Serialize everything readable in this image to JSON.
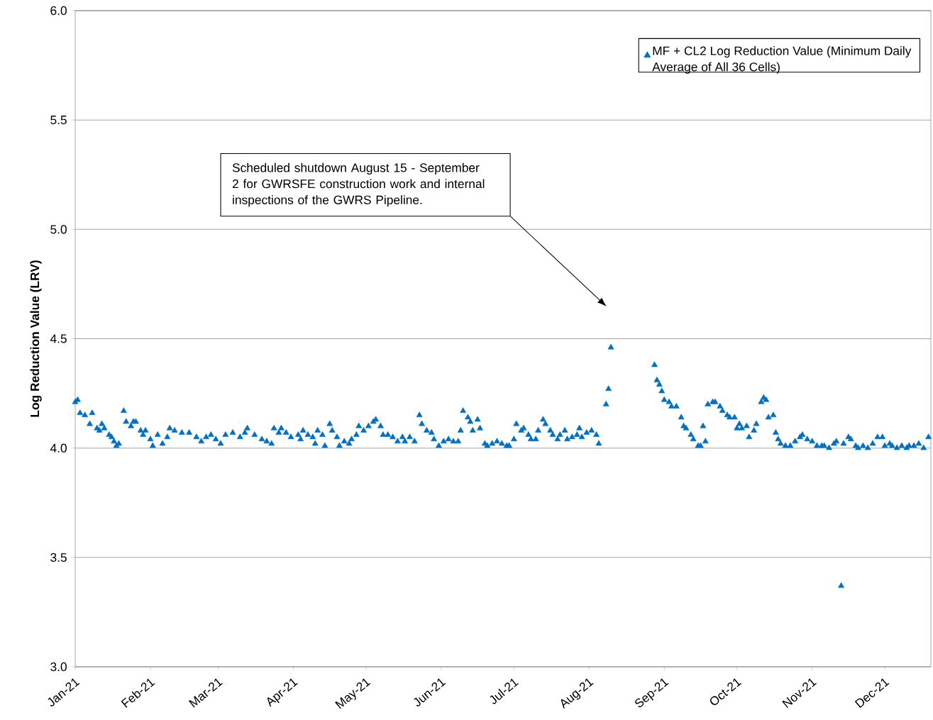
{
  "chart_data": {
    "type": "scatter",
    "ylabel": "Log Reduction Value (LRV)",
    "xlim": [
      "2021-01-01",
      "2021-12-20"
    ],
    "ylim": [
      3.0,
      6.0
    ],
    "yticks": [
      {
        "value": 3.0,
        "label": "3.0"
      },
      {
        "value": 3.5,
        "label": "3.5"
      },
      {
        "value": 4.0,
        "label": "4.0"
      },
      {
        "value": 4.5,
        "label": "4.5"
      },
      {
        "value": 5.0,
        "label": "5.0"
      },
      {
        "value": 5.5,
        "label": "5.5"
      },
      {
        "value": 6.0,
        "label": "6.0"
      }
    ],
    "xticks": [
      {
        "value": "2021-01-01",
        "label": "Jan-21"
      },
      {
        "value": "2021-02-01",
        "label": "Feb-21"
      },
      {
        "value": "2021-03-01",
        "label": "Mar-21"
      },
      {
        "value": "2021-04-01",
        "label": "Apr-21"
      },
      {
        "value": "2021-05-01",
        "label": "May-21"
      },
      {
        "value": "2021-06-01",
        "label": "Jun-21"
      },
      {
        "value": "2021-07-01",
        "label": "Jul-21"
      },
      {
        "value": "2021-08-01",
        "label": "Aug-21"
      },
      {
        "value": "2021-09-01",
        "label": "Sep-21"
      },
      {
        "value": "2021-10-01",
        "label": "Oct-21"
      },
      {
        "value": "2021-11-01",
        "label": "Nov-21"
      },
      {
        "value": "2021-12-01",
        "label": "Dec-21"
      }
    ],
    "grid": "y",
    "legend": "top right",
    "marker": "triangle",
    "annotations": [
      "Scheduled shutdown August 15 - September 2 for GWRSFE construction work and internal inspections of the GWRS Pipeline."
    ],
    "series": [
      {
        "name": "MF + CL2 Log Reduction Value (Minimum Daily Average of All 36 Cells)",
        "color": "#0070c0",
        "x": [
          "2021-01-01",
          "2021-01-02",
          "2021-01-03",
          "2021-01-05",
          "2021-01-07",
          "2021-01-08",
          "2021-01-10",
          "2021-01-11",
          "2021-01-12",
          "2021-01-13",
          "2021-01-15",
          "2021-01-16",
          "2021-01-17",
          "2021-01-18",
          "2021-01-19",
          "2021-01-21",
          "2021-01-22",
          "2021-01-24",
          "2021-01-25",
          "2021-01-26",
          "2021-01-28",
          "2021-01-29",
          "2021-01-30",
          "2021-02-01",
          "2021-02-02",
          "2021-02-04",
          "2021-02-06",
          "2021-02-08",
          "2021-02-09",
          "2021-02-11",
          "2021-02-14",
          "2021-02-17",
          "2021-02-20",
          "2021-02-22",
          "2021-02-24",
          "2021-02-26",
          "2021-02-28",
          "2021-03-02",
          "2021-03-04",
          "2021-03-07",
          "2021-03-10",
          "2021-03-12",
          "2021-03-13",
          "2021-03-16",
          "2021-03-19",
          "2021-03-21",
          "2021-03-23",
          "2021-03-24",
          "2021-03-26",
          "2021-03-27",
          "2021-03-29",
          "2021-03-31",
          "2021-04-03",
          "2021-04-04",
          "2021-04-05",
          "2021-04-07",
          "2021-04-09",
          "2021-04-10",
          "2021-04-11",
          "2021-04-13",
          "2021-04-14",
          "2021-04-16",
          "2021-04-17",
          "2021-04-19",
          "2021-04-20",
          "2021-04-22",
          "2021-04-24",
          "2021-04-25",
          "2021-04-27",
          "2021-04-28",
          "2021-04-30",
          "2021-05-02",
          "2021-05-04",
          "2021-05-05",
          "2021-05-07",
          "2021-05-08",
          "2021-05-10",
          "2021-05-12",
          "2021-05-14",
          "2021-05-16",
          "2021-05-17",
          "2021-05-19",
          "2021-05-21",
          "2021-05-23",
          "2021-05-24",
          "2021-05-26",
          "2021-05-28",
          "2021-05-29",
          "2021-05-31",
          "2021-06-02",
          "2021-06-04",
          "2021-06-06",
          "2021-06-08",
          "2021-06-09",
          "2021-06-10",
          "2021-06-12",
          "2021-06-13",
          "2021-06-14",
          "2021-06-16",
          "2021-06-17",
          "2021-06-19",
          "2021-06-20",
          "2021-06-22",
          "2021-06-24",
          "2021-06-26",
          "2021-06-28",
          "2021-06-29",
          "2021-07-01",
          "2021-07-02",
          "2021-07-04",
          "2021-07-05",
          "2021-07-07",
          "2021-07-08",
          "2021-07-10",
          "2021-07-11",
          "2021-07-13",
          "2021-07-14",
          "2021-07-16",
          "2021-07-17",
          "2021-07-19",
          "2021-07-20",
          "2021-07-22",
          "2021-07-23",
          "2021-07-25",
          "2021-07-27",
          "2021-07-28",
          "2021-07-29",
          "2021-07-31",
          "2021-08-02",
          "2021-08-04",
          "2021-08-05",
          "2021-08-08",
          "2021-08-09",
          "2021-08-10",
          "2021-08-28",
          "2021-08-29",
          "2021-08-30",
          "2021-08-31",
          "2021-09-01",
          "2021-09-03",
          "2021-09-04",
          "2021-09-06",
          "2021-09-08",
          "2021-09-09",
          "2021-09-10",
          "2021-09-12",
          "2021-09-13",
          "2021-09-15",
          "2021-09-16",
          "2021-09-17",
          "2021-09-18",
          "2021-09-19",
          "2021-09-21",
          "2021-09-22",
          "2021-09-24",
          "2021-09-25",
          "2021-09-27",
          "2021-09-28",
          "2021-09-30",
          "2021-10-01",
          "2021-10-02",
          "2021-10-03",
          "2021-10-05",
          "2021-10-06",
          "2021-10-08",
          "2021-10-09",
          "2021-10-11",
          "2021-10-12",
          "2021-10-13",
          "2021-10-14",
          "2021-10-16",
          "2021-10-17",
          "2021-10-18",
          "2021-10-19",
          "2021-10-21",
          "2021-10-23",
          "2021-10-25",
          "2021-10-27",
          "2021-10-28",
          "2021-10-30",
          "2021-11-01",
          "2021-11-03",
          "2021-11-05",
          "2021-11-06",
          "2021-11-08",
          "2021-11-10",
          "2021-11-11",
          "2021-11-13",
          "2021-11-14",
          "2021-11-16",
          "2021-11-17",
          "2021-11-19",
          "2021-11-20",
          "2021-11-22",
          "2021-11-24",
          "2021-11-26",
          "2021-11-28",
          "2021-11-30",
          "2021-12-01",
          "2021-12-03",
          "2021-12-04",
          "2021-12-06",
          "2021-12-08",
          "2021-12-10",
          "2021-12-11",
          "2021-12-13",
          "2021-12-15",
          "2021-12-17",
          "2021-12-19"
        ],
        "values": [
          4.21,
          4.22,
          4.16,
          4.15,
          4.11,
          4.16,
          4.09,
          4.08,
          4.11,
          4.09,
          4.06,
          4.05,
          4.03,
          4.01,
          4.02,
          4.17,
          4.12,
          4.1,
          4.12,
          4.12,
          4.08,
          4.06,
          4.08,
          4.04,
          4.01,
          4.06,
          4.02,
          4.05,
          4.09,
          4.08,
          4.07,
          4.07,
          4.05,
          4.03,
          4.05,
          4.06,
          4.04,
          4.02,
          4.06,
          4.07,
          4.05,
          4.07,
          4.09,
          4.06,
          4.04,
          4.03,
          4.02,
          4.09,
          4.07,
          4.09,
          4.07,
          4.05,
          4.06,
          4.04,
          4.08,
          4.06,
          4.05,
          4.02,
          4.08,
          4.06,
          4.01,
          4.11,
          4.08,
          4.05,
          4.01,
          4.03,
          4.02,
          4.04,
          4.06,
          4.1,
          4.08,
          4.1,
          4.12,
          4.13,
          4.1,
          4.06,
          4.06,
          4.05,
          4.03,
          4.05,
          4.03,
          4.05,
          4.03,
          4.15,
          4.11,
          4.08,
          4.07,
          4.04,
          4.01,
          4.03,
          4.04,
          4.03,
          4.03,
          4.08,
          4.17,
          4.14,
          4.12,
          4.08,
          4.13,
          4.09,
          4.02,
          4.01,
          4.02,
          4.03,
          4.02,
          4.01,
          4.01,
          4.04,
          4.11,
          4.08,
          4.09,
          4.06,
          4.04,
          4.04,
          4.08,
          4.13,
          4.11,
          4.08,
          4.06,
          4.04,
          4.06,
          4.08,
          4.04,
          4.05,
          4.06,
          4.09,
          4.05,
          4.07,
          4.08,
          4.06,
          4.02,
          4.2,
          4.27,
          4.46,
          4.38,
          4.31,
          4.29,
          4.26,
          4.22,
          4.21,
          4.19,
          4.19,
          4.14,
          4.1,
          4.09,
          4.06,
          4.04,
          4.01,
          4.01,
          4.1,
          4.03,
          4.2,
          4.21,
          4.21,
          4.19,
          4.17,
          4.15,
          4.14,
          4.14,
          4.09,
          4.11,
          4.09,
          4.1,
          4.05,
          4.08,
          4.11,
          4.21,
          4.23,
          4.22,
          4.14,
          4.15,
          4.07,
          4.04,
          4.02,
          4.01,
          4.01,
          4.03,
          4.05,
          4.06,
          4.04,
          4.03,
          4.01,
          4.01,
          4.01,
          4.0,
          4.02,
          4.03,
          3.37,
          4.02,
          4.05,
          4.04,
          4.01,
          4.0,
          4.01,
          4.0,
          4.02,
          4.05,
          4.05,
          4.01,
          4.02,
          4.01,
          4.0,
          4.01,
          4.0,
          4.01,
          4.01,
          4.02,
          4.0,
          4.05
        ]
      }
    ]
  }
}
